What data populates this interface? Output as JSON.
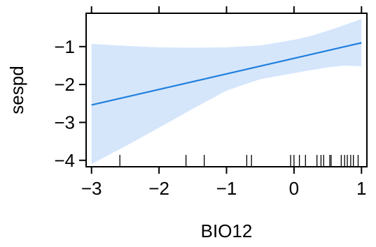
{
  "chart_data": {
    "type": "line",
    "title": "",
    "xlabel": "BIO12",
    "ylabel": "sespd",
    "xlim": [
      -3.08,
      1.08
    ],
    "ylim": [
      -4.17,
      -0.12
    ],
    "x_ticks": [
      -3,
      -2,
      -1,
      0,
      1
    ],
    "y_ticks": [
      -4,
      -3,
      -2,
      -1
    ],
    "grid": false,
    "legend": "none",
    "series": [
      {
        "x": [
          -3,
          1
        ],
        "y": [
          -2.54,
          -0.9
        ],
        "color": "#1f7fe0"
      }
    ],
    "confidence_band": {
      "color": "#d5e6fb",
      "x": [
        -3.0,
        -2.5,
        -2.0,
        -1.5,
        -1.0,
        -0.5,
        0.0,
        0.25,
        0.5,
        0.75,
        1.0
      ],
      "lower": [
        -4.1,
        -3.63,
        -3.14,
        -2.64,
        -2.16,
        -1.86,
        -1.7,
        -1.62,
        -1.55,
        -1.5,
        -1.52
      ],
      "upper": [
        -0.93,
        -0.98,
        -1.02,
        -1.03,
        -1.02,
        -0.97,
        -0.82,
        -0.72,
        -0.58,
        -0.43,
        -0.27
      ]
    },
    "rug_x": [
      -2.58,
      -1.6,
      -1.33,
      -0.7,
      -0.63,
      -0.05,
      0.0,
      0.08,
      0.17,
      0.34,
      0.4,
      0.44,
      0.53,
      0.55,
      0.7,
      0.75,
      0.79,
      0.84,
      0.88,
      0.95
    ]
  }
}
